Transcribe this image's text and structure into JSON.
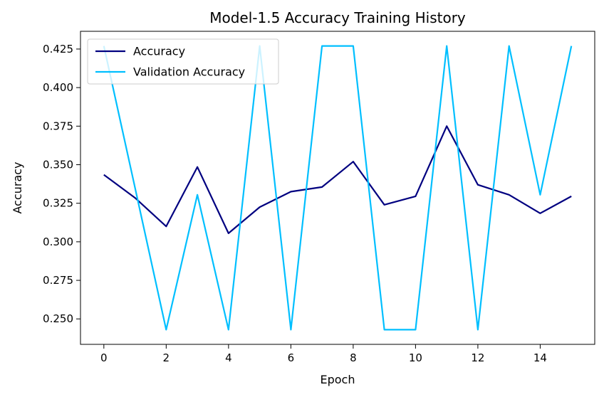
{
  "chart_data": {
    "type": "line",
    "title": "Model-1.5 Accuracy Training History",
    "xlabel": "Epoch",
    "ylabel": "Accuracy",
    "x": [
      0,
      1,
      2,
      3,
      4,
      5,
      6,
      7,
      8,
      9,
      10,
      11,
      12,
      13,
      14,
      15
    ],
    "xlim": [
      -0.75,
      15.75
    ],
    "ylim": [
      0.2335,
      0.4365
    ],
    "xticks": [
      0,
      2,
      4,
      6,
      8,
      10,
      12,
      14
    ],
    "yticks": [
      0.25,
      0.275,
      0.3,
      0.325,
      0.35,
      0.375,
      0.4,
      0.425
    ],
    "xtick_labels": [
      "0",
      "2",
      "4",
      "6",
      "8",
      "10",
      "12",
      "14"
    ],
    "ytick_labels": [
      "0.250",
      "0.275",
      "0.300",
      "0.325",
      "0.350",
      "0.375",
      "0.400",
      "0.425"
    ],
    "legend_position": "top-left",
    "grid": false,
    "series": [
      {
        "name": "Accuracy",
        "color": "#000080",
        "values": [
          0.3435,
          0.3285,
          0.31,
          0.3485,
          0.3055,
          0.3225,
          0.3325,
          0.3355,
          0.352,
          0.324,
          0.3295,
          0.375,
          0.337,
          0.3305,
          0.3185,
          0.3295
        ]
      },
      {
        "name": "Validation Accuracy",
        "color": "#00BFFF",
        "values": [
          0.427,
          0.335,
          0.243,
          0.3305,
          0.243,
          0.427,
          0.243,
          0.427,
          0.427,
          0.243,
          0.243,
          0.427,
          0.243,
          0.427,
          0.3305,
          0.427
        ]
      }
    ]
  }
}
